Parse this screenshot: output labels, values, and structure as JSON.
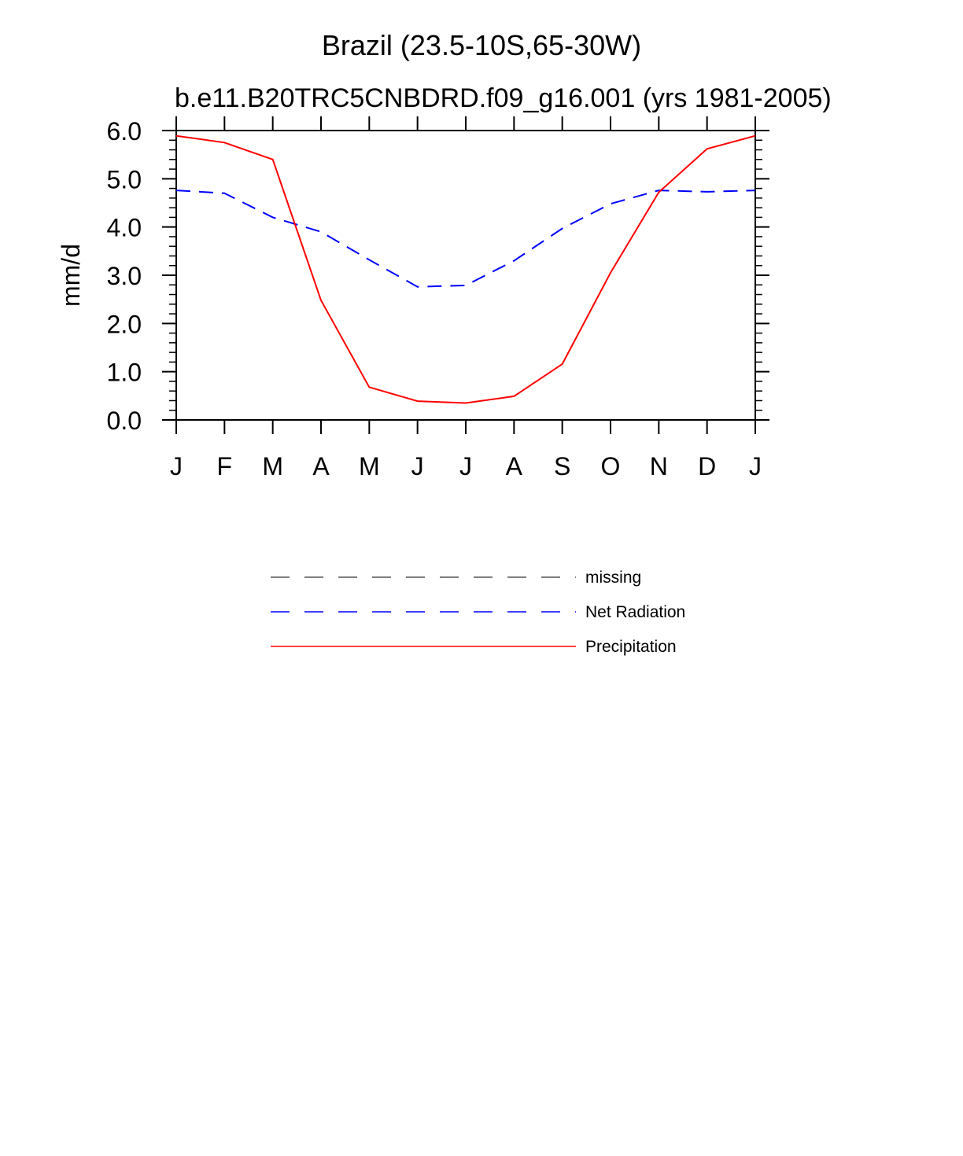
{
  "chart_data": {
    "type": "line",
    "title": "Brazil (23.5-10S,65-30W)",
    "subtitle": "b.e11.B20TRC5CNBDRD.f09_g16.001 (yrs 1981-2005)",
    "ylabel": "mm/d",
    "xlabel": "",
    "ylim": [
      0,
      6
    ],
    "yticks": [
      "0.0",
      "1.0",
      "2.0",
      "3.0",
      "4.0",
      "5.0",
      "6.0"
    ],
    "categories": [
      "J",
      "F",
      "M",
      "A",
      "M",
      "J",
      "J",
      "A",
      "S",
      "O",
      "N",
      "D",
      "J"
    ],
    "series": [
      {
        "name": "Net Radiation",
        "color": "#0000ff",
        "style": "dashed",
        "values": [
          4.76,
          4.7,
          4.2,
          3.9,
          3.32,
          2.76,
          2.79,
          3.3,
          3.97,
          4.48,
          4.76,
          4.73,
          4.76
        ]
      },
      {
        "name": "Precipitation",
        "color": "#ff0000",
        "style": "solid",
        "values": [
          5.89,
          5.75,
          5.4,
          2.48,
          0.68,
          0.39,
          0.35,
          0.49,
          1.16,
          3.05,
          4.72,
          5.62,
          5.89
        ]
      }
    ],
    "legend": [
      {
        "label": "missing",
        "color": "#555555",
        "style": "dashed"
      },
      {
        "label": "Net Radiation",
        "color": "#0000ff",
        "style": "dashed"
      },
      {
        "label": "Precipitation",
        "color": "#ff0000",
        "style": "solid"
      }
    ],
    "legend_position": "bottom-center",
    "grid": false
  }
}
